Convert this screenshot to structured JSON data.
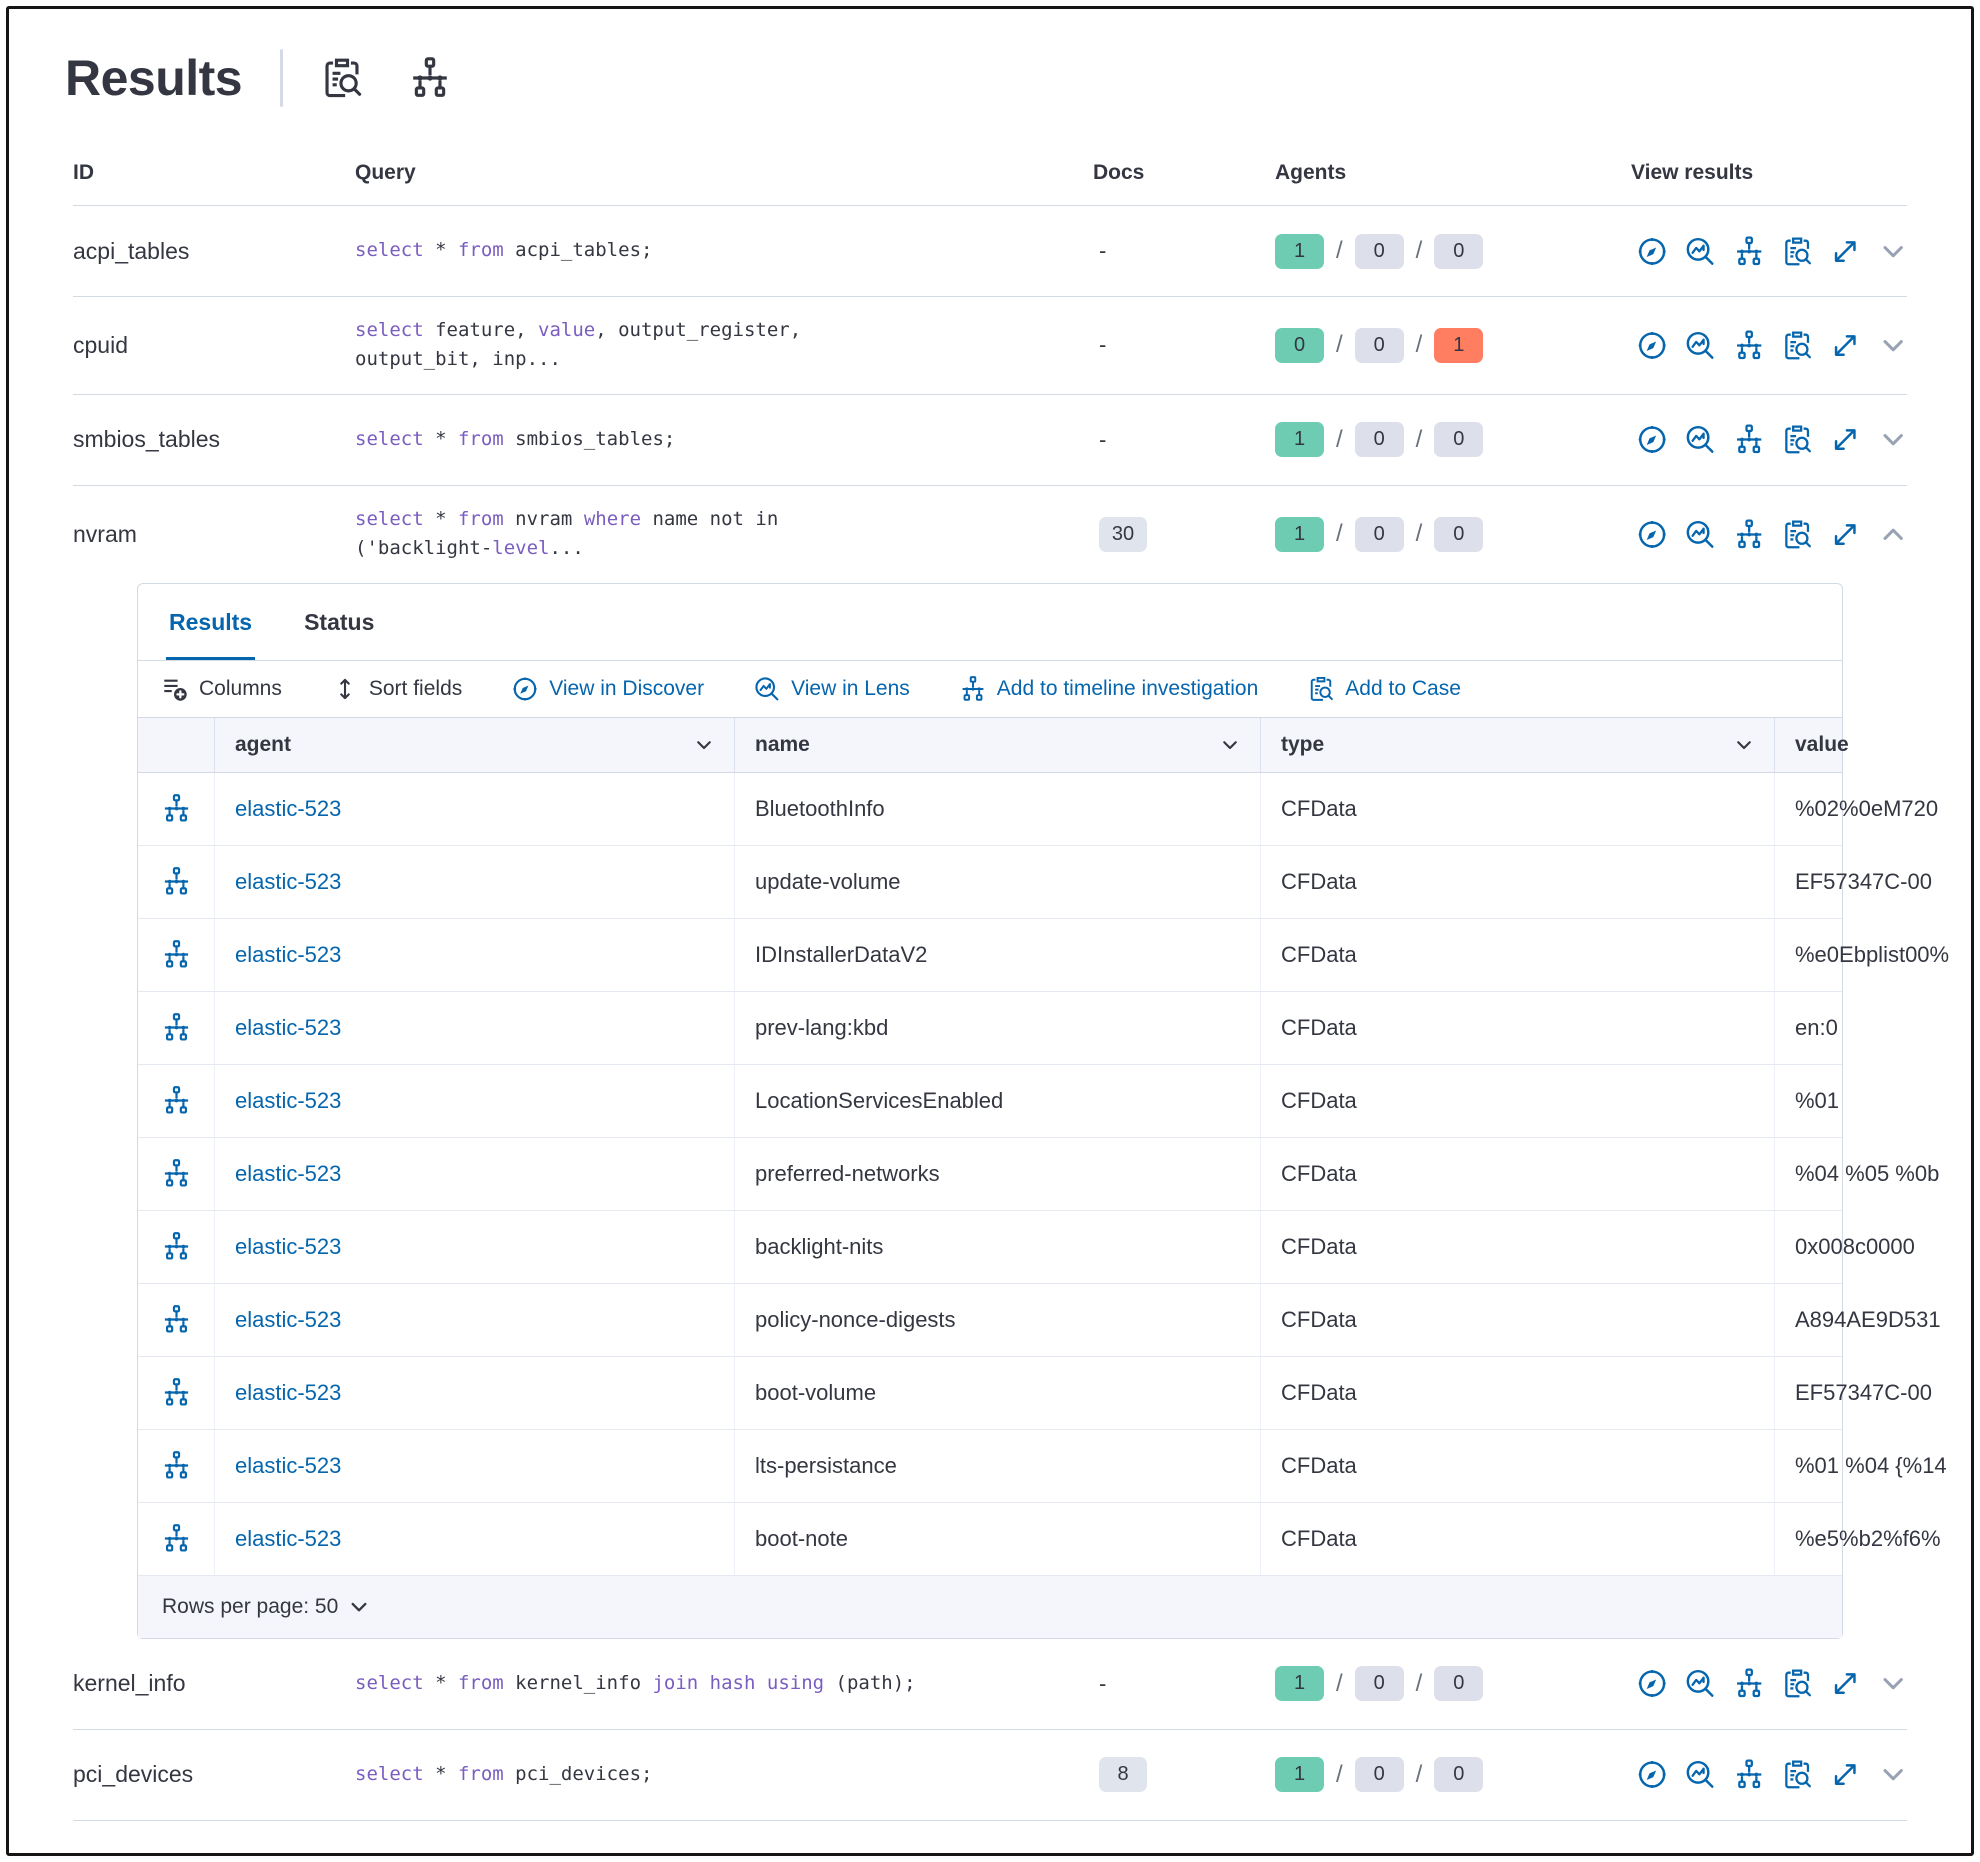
{
  "colors": {
    "primary_blue": "#0565ad",
    "text": "#343741",
    "code_keyword": "#7a5dc0",
    "success_badge": "#6dccb1",
    "neutral_badge": "#dde0ea",
    "danger_badge": "#ff7e62",
    "border": "#d3dae6"
  },
  "header": {
    "title": "Results",
    "icons": [
      "inspect-icon",
      "timeline-icon"
    ]
  },
  "queries_table": {
    "columns": [
      "ID",
      "Query",
      "Docs",
      "Agents",
      "View results"
    ],
    "view_result_icons": [
      "discover-icon",
      "lens-icon",
      "timeline-icon",
      "case-icon",
      "expand-icon"
    ],
    "rows": [
      {
        "section": "top",
        "id": "acpi_tables",
        "query": [
          [
            [
              "k",
              "select"
            ],
            [
              "t",
              " * "
            ],
            [
              "k",
              "from"
            ],
            [
              "t",
              " acpi_tables;"
            ]
          ]
        ],
        "docs": {
          "badge": false,
          "text": "-"
        },
        "agents": [
          {
            "text": "1",
            "tone": "success"
          },
          {
            "text": "0",
            "tone": "neutral"
          },
          {
            "text": "0",
            "tone": "neutral"
          }
        ],
        "chevron": "down"
      },
      {
        "section": "top",
        "id": "cpuid",
        "query": [
          [
            [
              "k",
              "select"
            ],
            [
              "t",
              " feature, "
            ],
            [
              "k",
              "value"
            ],
            [
              "t",
              ", output_register,"
            ]
          ],
          [
            [
              "t",
              "output_bit, inp..."
            ]
          ]
        ],
        "docs": {
          "badge": false,
          "text": "-"
        },
        "agents": [
          {
            "text": "0",
            "tone": "success"
          },
          {
            "text": "0",
            "tone": "neutral"
          },
          {
            "text": "1",
            "tone": "danger"
          }
        ],
        "chevron": "down"
      },
      {
        "section": "top",
        "id": "smbios_tables",
        "query": [
          [
            [
              "k",
              "select"
            ],
            [
              "t",
              " * "
            ],
            [
              "k",
              "from"
            ],
            [
              "t",
              " smbios_tables;"
            ]
          ]
        ],
        "docs": {
          "badge": false,
          "text": "-"
        },
        "agents": [
          {
            "text": "1",
            "tone": "success"
          },
          {
            "text": "0",
            "tone": "neutral"
          },
          {
            "text": "0",
            "tone": "neutral"
          }
        ],
        "chevron": "down"
      },
      {
        "section": "top",
        "id": "nvram",
        "query": [
          [
            [
              "k",
              "select"
            ],
            [
              "t",
              " * "
            ],
            [
              "k",
              "from"
            ],
            [
              "t",
              " nvram "
            ],
            [
              "k",
              "where"
            ],
            [
              "t",
              " name not in"
            ]
          ],
          [
            [
              "t",
              "('backlight-"
            ],
            [
              "k",
              "level"
            ],
            [
              "t",
              "..."
            ]
          ]
        ],
        "docs": {
          "badge": true,
          "text": "30"
        },
        "agents": [
          {
            "text": "1",
            "tone": "success"
          },
          {
            "text": "0",
            "tone": "neutral"
          },
          {
            "text": "0",
            "tone": "neutral"
          }
        ],
        "chevron": "up"
      },
      {
        "section": "bottom",
        "id": "kernel_info",
        "query": [
          [
            [
              "k",
              "select"
            ],
            [
              "t",
              " * "
            ],
            [
              "k",
              "from"
            ],
            [
              "t",
              " kernel_info "
            ],
            [
              "k",
              "join"
            ],
            [
              "t",
              " "
            ],
            [
              "k",
              "hash"
            ],
            [
              "t",
              " "
            ],
            [
              "k",
              "using"
            ],
            [
              "t",
              " (path);"
            ]
          ]
        ],
        "docs": {
          "badge": false,
          "text": "-"
        },
        "agents": [
          {
            "text": "1",
            "tone": "success"
          },
          {
            "text": "0",
            "tone": "neutral"
          },
          {
            "text": "0",
            "tone": "neutral"
          }
        ],
        "chevron": "down"
      },
      {
        "section": "bottom",
        "id": "pci_devices",
        "query": [
          [
            [
              "k",
              "select"
            ],
            [
              "t",
              " * "
            ],
            [
              "k",
              "from"
            ],
            [
              "t",
              " pci_devices;"
            ]
          ]
        ],
        "docs": {
          "badge": true,
          "text": "8"
        },
        "agents": [
          {
            "text": "1",
            "tone": "success"
          },
          {
            "text": "0",
            "tone": "neutral"
          },
          {
            "text": "0",
            "tone": "neutral"
          }
        ],
        "chevron": "down"
      }
    ]
  },
  "results_panel": {
    "tabs": [
      {
        "label": "Results",
        "active": true
      },
      {
        "label": "Status",
        "active": false
      }
    ],
    "toolbar": [
      {
        "label": "Columns",
        "icon": "columns-icon",
        "tone": "dark"
      },
      {
        "label": "Sort fields",
        "icon": "sort-icon",
        "tone": "dark"
      },
      {
        "label": "View in Discover",
        "icon": "discover-icon",
        "tone": "primary"
      },
      {
        "label": "View in Lens",
        "icon": "lens-icon",
        "tone": "primary"
      },
      {
        "label": "Add to timeline investigation",
        "icon": "timeline-icon",
        "tone": "primary"
      },
      {
        "label": "Add to Case",
        "icon": "case-icon",
        "tone": "primary"
      }
    ],
    "grid": {
      "columns": [
        {
          "label": "agent",
          "sortable": true
        },
        {
          "label": "name",
          "sortable": true
        },
        {
          "label": "type",
          "sortable": true
        },
        {
          "label": "value",
          "sortable": false
        }
      ],
      "row_icon": "timeline-icon",
      "rows": [
        {
          "agent": "elastic-523",
          "name": "BluetoothInfo",
          "type": "CFData",
          "value": "%02%0eM720"
        },
        {
          "agent": "elastic-523",
          "name": "update-volume",
          "type": "CFData",
          "value": "EF57347C-00"
        },
        {
          "agent": "elastic-523",
          "name": "IDInstallerDataV2",
          "type": "CFData",
          "value": "%e0Ebplist00%"
        },
        {
          "agent": "elastic-523",
          "name": "prev-lang:kbd",
          "type": "CFData",
          "value": "en:0"
        },
        {
          "agent": "elastic-523",
          "name": "LocationServicesEnabled",
          "type": "CFData",
          "value": "%01"
        },
        {
          "agent": "elastic-523",
          "name": "preferred-networks",
          "type": "CFData",
          "value": "%04 %05 %0b"
        },
        {
          "agent": "elastic-523",
          "name": "backlight-nits",
          "type": "CFData",
          "value": "0x008c0000"
        },
        {
          "agent": "elastic-523",
          "name": "policy-nonce-digests",
          "type": "CFData",
          "value": "A894AE9D531"
        },
        {
          "agent": "elastic-523",
          "name": "boot-volume",
          "type": "CFData",
          "value": "EF57347C-00"
        },
        {
          "agent": "elastic-523",
          "name": "lts-persistance",
          "type": "CFData",
          "value": "%01 %04 {%14"
        },
        {
          "agent": "elastic-523",
          "name": "boot-note",
          "type": "CFData",
          "value": "%e5%b2%f6%"
        }
      ],
      "rows_per_page_label": "Rows per page: 50"
    }
  }
}
